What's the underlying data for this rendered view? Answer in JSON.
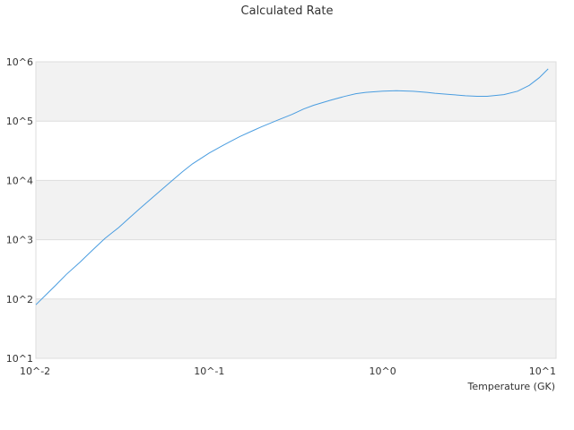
{
  "chart_data": {
    "type": "line",
    "title": "Calculated Rate",
    "xlabel": "Temperature (GK)",
    "ylabel": "",
    "x_scale": "log",
    "y_scale": "log",
    "xlim": [
      0.01,
      10
    ],
    "ylim": [
      10,
      1000000
    ],
    "x_tick_labels": [
      "10^-2",
      "10^-1",
      "10^0",
      "10^1"
    ],
    "y_tick_labels": [
      "10^1",
      "10^2",
      "10^3",
      "10^4",
      "10^5",
      "10^6"
    ],
    "grid": "horizontal, alternating bands",
    "legend": "none",
    "colors": {
      "line": "#4a9de0",
      "band": "#f2f2f2",
      "grid": "#dddddd",
      "text": "#333333"
    },
    "series": [
      {
        "x": [
          0.01,
          0.0115,
          0.013,
          0.015,
          0.018,
          0.021,
          0.025,
          0.03,
          0.035,
          0.04,
          0.05,
          0.06,
          0.07,
          0.08,
          0.1,
          0.12,
          0.15,
          0.18,
          0.2,
          0.25,
          0.3,
          0.35,
          0.4,
          0.5,
          0.6,
          0.7,
          0.8,
          1.0,
          1.2,
          1.5,
          1.8,
          2.0,
          2.5,
          3.0,
          3.5,
          4.0,
          5.0,
          6.0,
          7.0,
          8.0,
          9.0
        ],
        "y": [
          80,
          120,
          170,
          260,
          420,
          650,
          1050,
          1600,
          2400,
          3400,
          6000,
          9500,
          14000,
          19000,
          29000,
          39000,
          55000,
          70000,
          80000,
          105000,
          130000,
          160000,
          185000,
          225000,
          260000,
          290000,
          305000,
          320000,
          325000,
          318000,
          305000,
          295000,
          280000,
          268000,
          262000,
          262000,
          280000,
          320000,
          400000,
          540000,
          760000
        ]
      }
    ]
  }
}
